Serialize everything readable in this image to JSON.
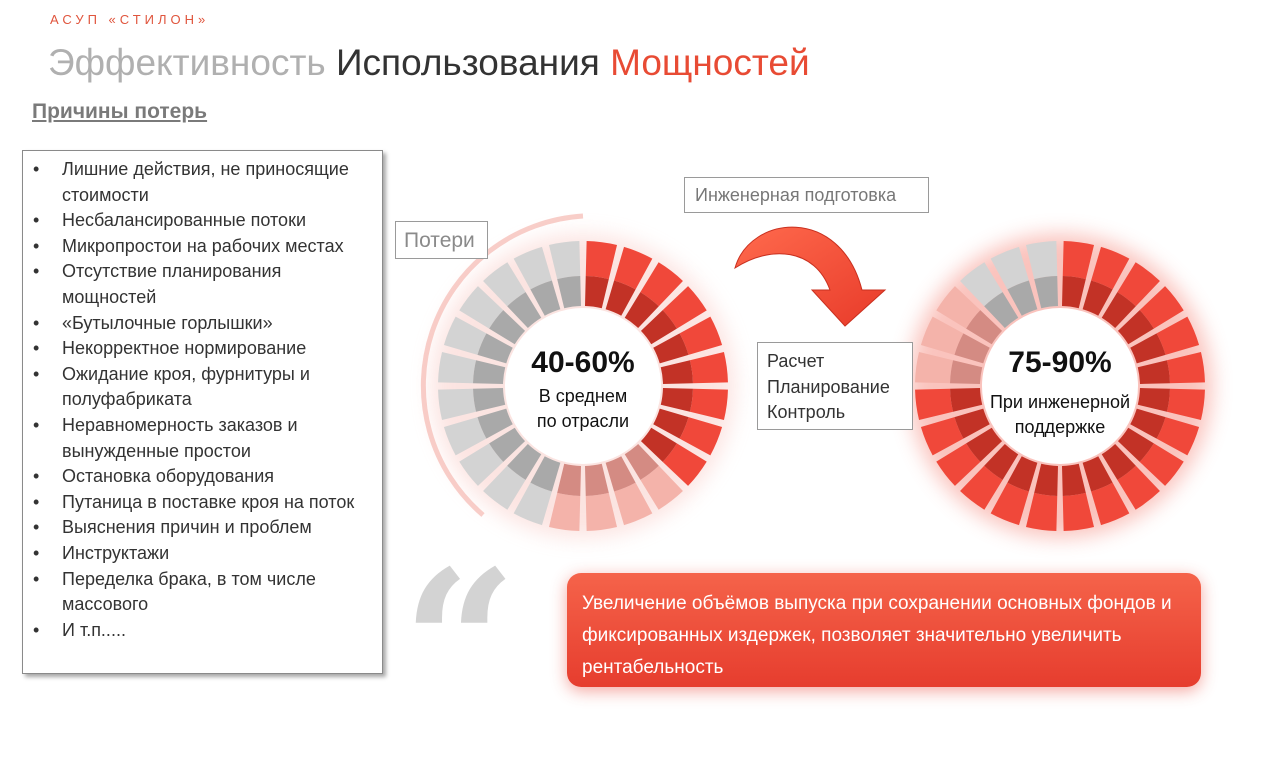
{
  "header": {
    "brand": "АСУП «СТИЛОН»",
    "title_part1": "Эффективность",
    "title_part2": "Использования",
    "title_part3": "Мощностей",
    "subtitle": "Причины потерь"
  },
  "reasons": [
    "Лишние действия, не приносящие стоимости",
    "Несбалансированные потоки",
    "Микропростои на рабочих местах",
    "Отсутствие планирования мощностей",
    "«Бутылочные горлышки»",
    "Некорректное нормирование",
    "Ожидание кроя, фурнитуры и полуфабриката",
    "Неравномерность заказов и вынужденные простои",
    "Остановка оборудования",
    "Путаница в поставке кроя на поток",
    "Выяснения причин и проблем",
    "Инструктажи",
    "Переделка брака, в том числе массового",
    "И т.п....."
  ],
  "left_chart": {
    "value": "40-60%",
    "line1": "В среднем",
    "line2": "по отрасли",
    "label": "Потери",
    "segments": 24,
    "red_segments": 9,
    "pink_segments": 4
  },
  "right_chart": {
    "value": "75-90%",
    "line1": "При инженерной",
    "line2": "поддержке",
    "segments": 24,
    "red_segments": 18,
    "pink_segments": 3
  },
  "arrow_label": "Инженерная подготовка",
  "steps": [
    "Расчет",
    "Планирование",
    "Контроль"
  ],
  "quote_mark": "“",
  "banner_text": "Увеличение объёмов выпуска  при сохранении основных фондов и фиксированных издержек, позволяет значительно увеличить рентабельность",
  "colors": {
    "accent": "#e84b34",
    "red": "#f0483a",
    "pink": "#f4b3aa",
    "gray": "#d3d3d3"
  }
}
